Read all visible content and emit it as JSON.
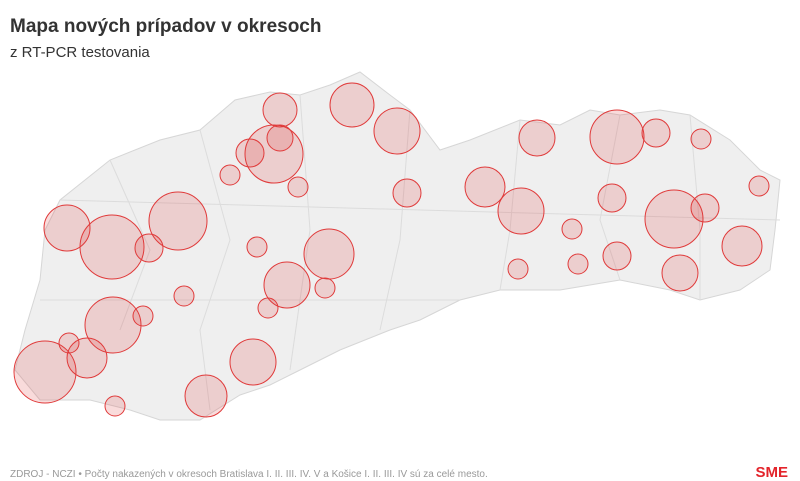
{
  "header": {
    "title": "Mapa nových prípadov v okresoch",
    "subtitle": "z RT-PCR testovania"
  },
  "map": {
    "bubble_color": "#e03a3a",
    "bubbles": [
      289,
      484,
      529,
      841,
      169,
      196,
      100,
      100,
      324,
      729,
      196,
      100,
      400,
      196,
      529,
      196,
      841,
      196,
      100,
      529,
      1024,
      196,
      841,
      100,
      625,
      100,
      196,
      400,
      100,
      100,
      324,
      529,
      100,
      100,
      100,
      784,
      100,
      100,
      400,
      961,
      529,
      441,
      100
    ]
  },
  "footer": {
    "source": "ZDROJ - NCZI • Počty nakazených v okresoch Bratislava I. II. III. IV. V a Košice I. II. III. IV sú za celé mesto.",
    "logo": "SME"
  }
}
